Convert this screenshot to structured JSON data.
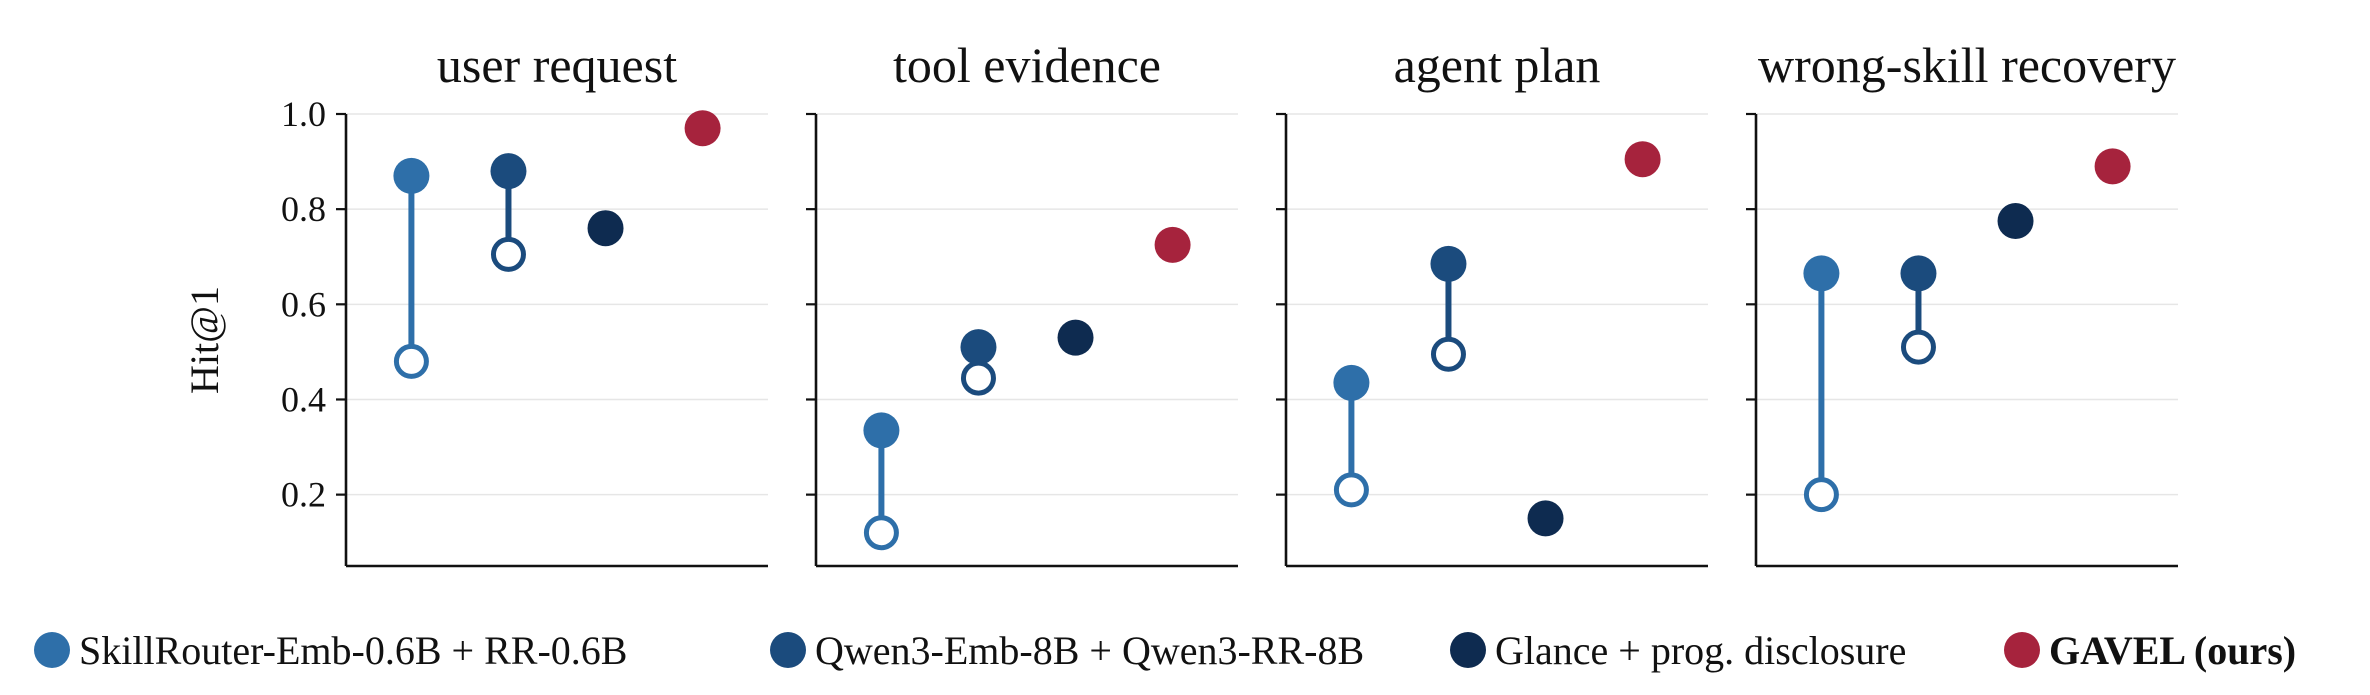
{
  "chart_data": {
    "type": "scatter",
    "ylabel": "Hit@1",
    "ylim": [
      0.05,
      1.0
    ],
    "yticks": [
      "0.2",
      "0.4",
      "0.6",
      "0.8",
      "1.0"
    ],
    "grid": "horizontal",
    "legend_placement": "bottom",
    "panels": [
      {
        "title": "user request",
        "points": [
          {
            "series": "skillrouter",
            "value": 0.87,
            "baseline": 0.48
          },
          {
            "series": "qwen3",
            "value": 0.88,
            "baseline": 0.705
          },
          {
            "series": "glance",
            "value": 0.76
          },
          {
            "series": "gavel",
            "value": 0.97
          }
        ]
      },
      {
        "title": "tool evidence",
        "points": [
          {
            "series": "skillrouter",
            "value": 0.335,
            "baseline": 0.12
          },
          {
            "series": "qwen3",
            "value": 0.51,
            "baseline": 0.445
          },
          {
            "series": "glance",
            "value": 0.53
          },
          {
            "series": "gavel",
            "value": 0.725
          }
        ]
      },
      {
        "title": "agent plan",
        "points": [
          {
            "series": "skillrouter",
            "value": 0.435,
            "baseline": 0.21
          },
          {
            "series": "qwen3",
            "value": 0.685,
            "baseline": 0.495
          },
          {
            "series": "glance",
            "value": 0.15
          },
          {
            "series": "gavel",
            "value": 0.905
          }
        ]
      },
      {
        "title": "wrong-skill recovery",
        "points": [
          {
            "series": "skillrouter",
            "value": 0.665,
            "baseline": 0.2
          },
          {
            "series": "qwen3",
            "value": 0.665,
            "baseline": 0.51
          },
          {
            "series": "glance",
            "value": 0.775
          },
          {
            "series": "gavel",
            "value": 0.89
          }
        ]
      }
    ],
    "series": [
      {
        "id": "skillrouter",
        "name": "SkillRouter-Emb-0.6B + RR-0.6B",
        "color": "#2e6fa9",
        "bold": false
      },
      {
        "id": "qwen3",
        "name": "Qwen3-Emb-8B + Qwen3-RR-8B",
        "color": "#1b4b7d",
        "bold": false
      },
      {
        "id": "glance",
        "name": "Glance + prog. disclosure",
        "color": "#0e2b50",
        "bold": false
      },
      {
        "id": "gavel",
        "name": "GAVEL (ours)",
        "color": "#a6233d",
        "bold": true
      }
    ]
  }
}
